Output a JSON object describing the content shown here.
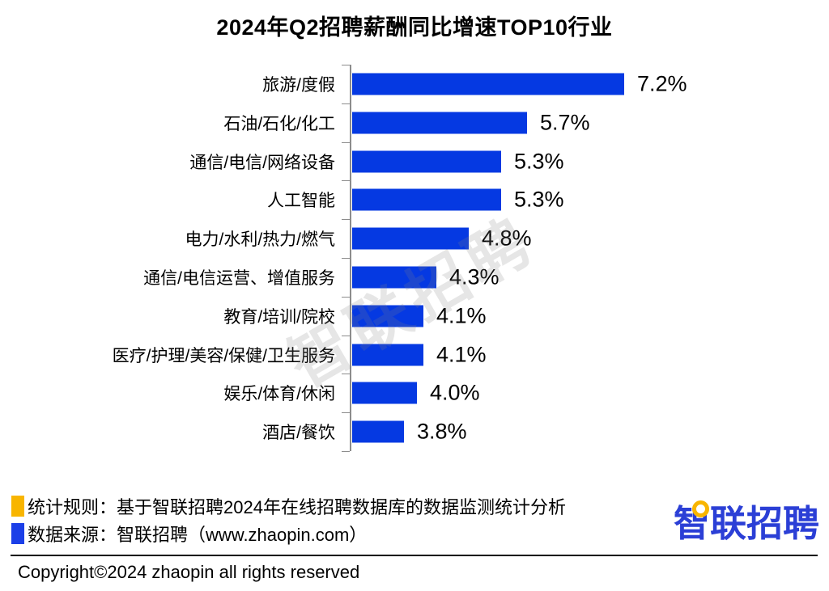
{
  "title": "2024年Q2招聘薪酬同比增速TOP10行业",
  "watermark": "智联招聘",
  "chart_data": {
    "type": "bar",
    "orientation": "horizontal",
    "title": "2024年Q2招聘薪酬同比增速TOP10行业",
    "categories": [
      "旅游/度假",
      "石油/石化/化工",
      "通信/电信/网络设备",
      "人工智能",
      "电力/水利/热力/燃气",
      "通信/电信运营、增值服务",
      "教育/培训/院校",
      "医疗/护理/美容/保健/卫生服务",
      "娱乐/体育/休闲",
      "酒店/餐饮"
    ],
    "values": [
      7.2,
      5.7,
      5.3,
      5.3,
      4.8,
      4.3,
      4.1,
      4.1,
      4.0,
      3.8
    ],
    "value_suffix": "%",
    "xlim": [
      3.0,
      7.5
    ],
    "grid": false,
    "legend_position": "none",
    "bar_color": "#0539e2",
    "axis_color": "#8c8c8c"
  },
  "footer": {
    "legend": [
      {
        "color": "#f8b500",
        "text": "统计规则：基于智联招聘2024年在线招聘数据库的数据监测统计分析"
      },
      {
        "color": "#1b3fe8",
        "text": "数据来源：智联招聘（www.zhaopin.com）"
      }
    ],
    "copyright": "Copyright©2024 zhaopin all rights reserved",
    "logo_text": "智联招聘",
    "logo_color": "#2b3fd6",
    "logo_accent_color": "#f8b500"
  }
}
